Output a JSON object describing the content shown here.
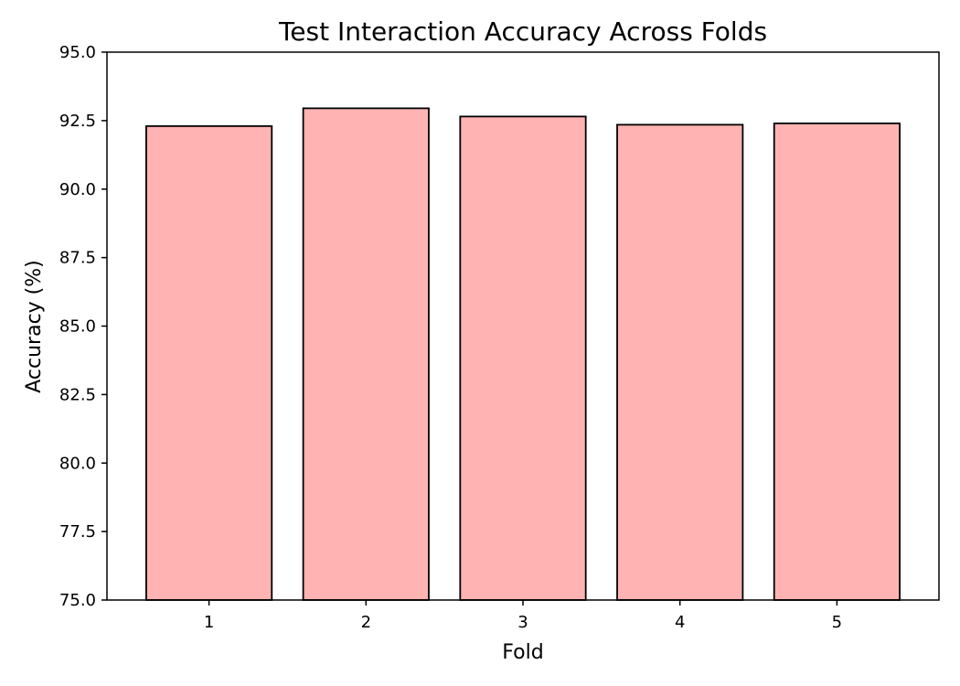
{
  "chart_data": {
    "type": "bar",
    "title": "Test Interaction Accuracy Across Folds",
    "xlabel": "Fold",
    "ylabel": "Accuracy (%)",
    "categories": [
      "1",
      "2",
      "3",
      "4",
      "5"
    ],
    "values": [
      92.3,
      92.95,
      92.65,
      92.35,
      92.4
    ],
    "ylim": [
      75.0,
      95.0
    ],
    "yticks": [
      "75.0",
      "77.5",
      "80.0",
      "82.5",
      "85.0",
      "87.5",
      "90.0",
      "92.5",
      "95.0"
    ],
    "grid": false,
    "legend": "none",
    "bar_color": "#ffb3b3",
    "edge_color": "#000000"
  }
}
